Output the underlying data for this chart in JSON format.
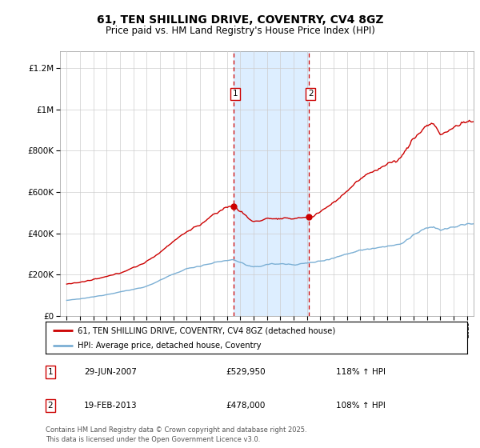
{
  "title": "61, TEN SHILLING DRIVE, COVENTRY, CV4 8GZ",
  "subtitle": "Price paid vs. HM Land Registry's House Price Index (HPI)",
  "legend_line1": "61, TEN SHILLING DRIVE, COVENTRY, CV4 8GZ (detached house)",
  "legend_line2": "HPI: Average price, detached house, Coventry",
  "sale1_label": "1",
  "sale1_date": "29-JUN-2007",
  "sale1_price": "£529,950",
  "sale1_hpi": "118% ↑ HPI",
  "sale2_label": "2",
  "sale2_date": "19-FEB-2013",
  "sale2_price": "£478,000",
  "sale2_hpi": "108% ↑ HPI",
  "footer": "Contains HM Land Registry data © Crown copyright and database right 2025.\nThis data is licensed under the Open Government Licence v3.0.",
  "sale1_year": 2007.5,
  "sale2_year": 2013.12,
  "sale1_red_value": 530000,
  "sale2_red_value": 478000,
  "red_line_color": "#cc0000",
  "blue_line_color": "#7bafd4",
  "shade_color": "#ddeeff",
  "vline_color": "#cc0000",
  "background_color": "#ffffff",
  "ylim": [
    0,
    1280000
  ],
  "xlim_start": 1994.5,
  "xlim_end": 2025.5,
  "title_fontsize": 10,
  "subtitle_fontsize": 8.5
}
